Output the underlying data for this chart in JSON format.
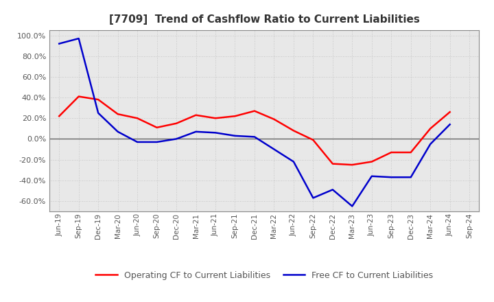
{
  "title": "[7709]  Trend of Cashflow Ratio to Current Liabilities",
  "x_labels": [
    "Jun-19",
    "Sep-19",
    "Dec-19",
    "Mar-20",
    "Jun-20",
    "Sep-20",
    "Dec-20",
    "Mar-21",
    "Jun-21",
    "Sep-21",
    "Dec-21",
    "Mar-22",
    "Jun-22",
    "Sep-22",
    "Dec-22",
    "Mar-23",
    "Jun-23",
    "Sep-23",
    "Dec-23",
    "Mar-24",
    "Jun-24",
    "Sep-24"
  ],
  "operating_cf": [
    0.22,
    0.41,
    0.38,
    0.24,
    0.2,
    0.11,
    0.15,
    0.23,
    0.2,
    0.22,
    0.27,
    0.19,
    0.08,
    -0.01,
    -0.24,
    -0.25,
    -0.22,
    -0.13,
    -0.13,
    0.1,
    0.26,
    null
  ],
  "free_cf": [
    0.92,
    0.97,
    0.25,
    0.07,
    -0.03,
    -0.03,
    0.0,
    0.07,
    0.06,
    0.03,
    0.02,
    -0.1,
    -0.22,
    -0.57,
    -0.49,
    -0.65,
    -0.36,
    -0.37,
    -0.37,
    -0.05,
    0.14,
    null
  ],
  "ylim": [
    -0.7,
    1.05
  ],
  "yticks": [
    -0.6,
    -0.4,
    -0.2,
    0.0,
    0.2,
    0.4,
    0.6,
    0.8,
    1.0
  ],
  "operating_color": "#FF0000",
  "free_color": "#0000CC",
  "figure_bg": "#FFFFFF",
  "plot_bg": "#E8E8E8",
  "grid_color": "#BBBBBB",
  "zero_line_color": "#555555",
  "title_color": "#333333",
  "tick_color": "#555555",
  "spine_color": "#888888",
  "legend_operating": "Operating CF to Current Liabilities",
  "legend_free": "Free CF to Current Liabilities"
}
